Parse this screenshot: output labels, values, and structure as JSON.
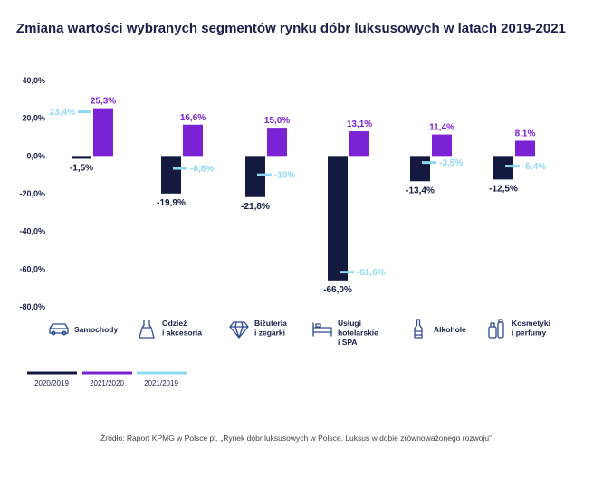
{
  "chart_data": {
    "type": "bar",
    "title": "Zmiana wartości wybranych segmentów rynku dóbr luksusowych w latach 2019-2021",
    "categories": [
      {
        "lines": [
          "Samochody"
        ],
        "icon": "car-icon"
      },
      {
        "lines": [
          "Odzież",
          "i akcesoria"
        ],
        "icon": "dress-icon"
      },
      {
        "lines": [
          "Biżuteria",
          "i zegarki"
        ],
        "icon": "diamond-icon"
      },
      {
        "lines": [
          "Usługi",
          "hotelarskie",
          "i SPA"
        ],
        "icon": "bed-icon"
      },
      {
        "lines": [
          "Alkohole"
        ],
        "icon": "bottle-icon"
      },
      {
        "lines": [
          "Kosmetyki",
          "i perfumy"
        ],
        "icon": "perfume-icon"
      }
    ],
    "series": [
      {
        "name": "2020/2019",
        "color": "#14193f",
        "values": [
          -1.5,
          -19.9,
          -21.8,
          -66.0,
          -13.4,
          -12.5
        ],
        "labels": [
          "-1,5%",
          "-19,9%",
          "-21,8%",
          "-66,0%",
          "-13,4%",
          "-12,5%"
        ]
      },
      {
        "name": "2021/2020",
        "color": "#7b22d4",
        "values": [
          25.3,
          16.6,
          15.0,
          13.1,
          11.4,
          8.1
        ],
        "labels": [
          "25,3%",
          "16,6%",
          "15,0%",
          "13,1%",
          "11,4%",
          "8,1%"
        ]
      },
      {
        "name": "2021/2019",
        "color": "#8fd8f5",
        "values": [
          23.4,
          -6.6,
          -10.0,
          -61.6,
          -3.5,
          -5.4
        ],
        "labels": [
          "23,4%",
          "-6,6%",
          "-10%",
          "-61,6%",
          "-3,5%",
          "-5,4%"
        ]
      }
    ],
    "yticks": [
      40,
      20,
      0,
      -20,
      -40,
      -60,
      -80
    ],
    "ytick_labels": [
      "40,0%",
      "20,0%",
      "0,0%",
      "-20,0%",
      "-40,0%",
      "-60,0%",
      "-80,0%"
    ],
    "ylim": [
      -80,
      40
    ],
    "grid": false,
    "legend_position": "bottom-left",
    "source": "Źródło: Raport KPMG w Polsce pt. „Rynek dóbr luksusowych w Polsce. Luksus w dobie zrównoważonego rozwoju”"
  }
}
